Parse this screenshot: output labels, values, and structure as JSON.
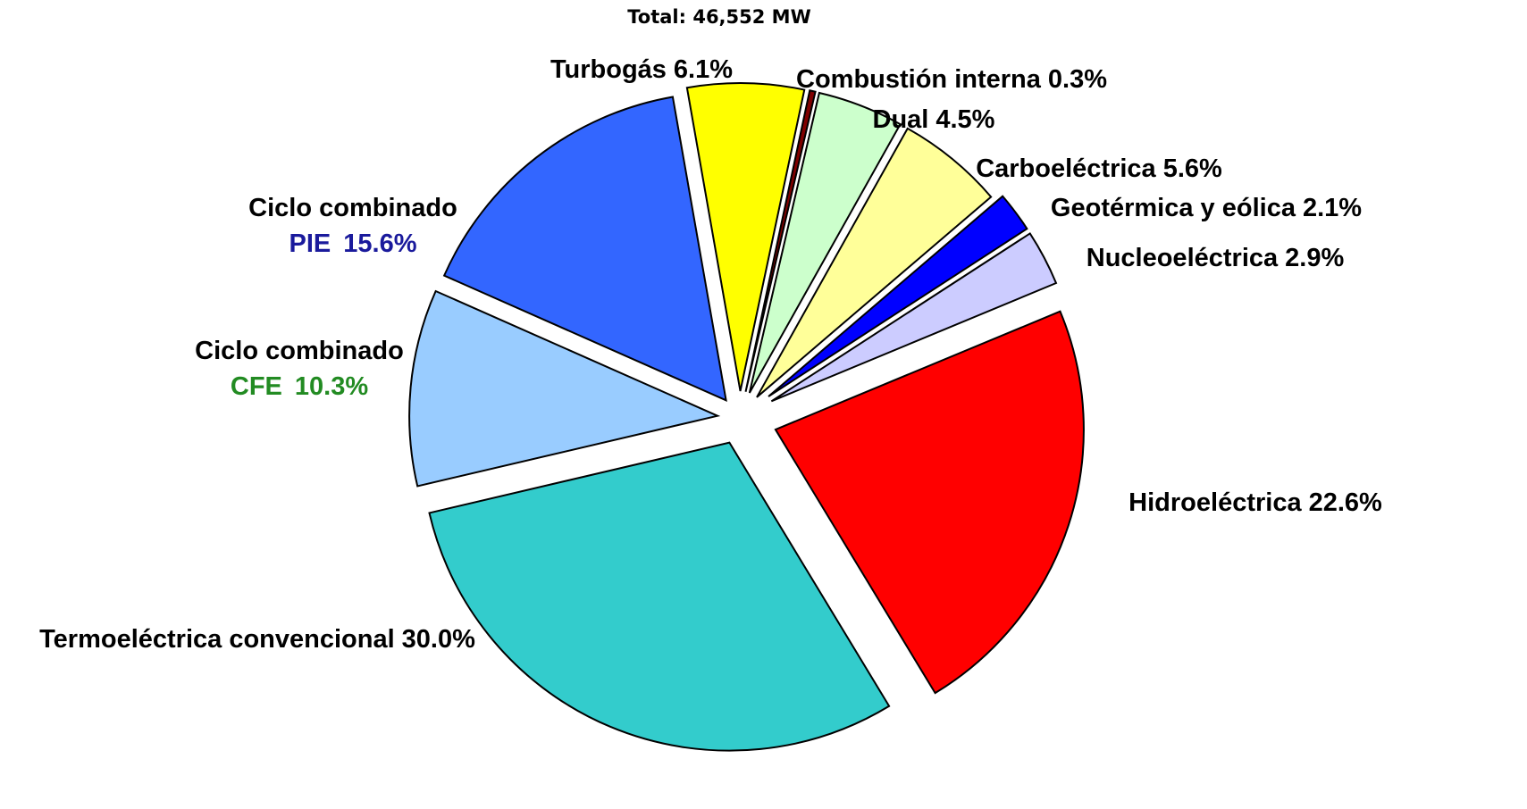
{
  "chart_data": {
    "type": "pie",
    "title": "Total: 46,552 MW",
    "categories": [
      "Combustión interna",
      "Dual",
      "Carboeléctrica",
      "Geotérmica y eólica",
      "Nucleoeléctrica",
      "Hidroeléctrica",
      "Termoeléctrica convencional",
      "Ciclo combinado\nCFE",
      "Ciclo combinado\nPIE",
      "Turbogás"
    ],
    "values": [
      0.3,
      4.5,
      5.6,
      2.1,
      2.9,
      22.6,
      30.0,
      10.3,
      15.6,
      6.1
    ],
    "value_labels": [
      "0.3%",
      "4.5%",
      "5.6%",
      "2.1%",
      "2.9%",
      "22.6%",
      "30.0%",
      "10.3%",
      "15.6%",
      "6.1%"
    ],
    "colors": [
      "#800000",
      "#ccffcc",
      "#ffff99",
      "#0000ff",
      "#ccccff",
      "#ff0000",
      "#33cccc",
      "#99ccff",
      "#3366ff",
      "#ffff00"
    ],
    "label_colors": [
      "#000000",
      "#000000",
      "#000000",
      "#000000",
      "#000000",
      "#000000",
      "#000000",
      "#228b22",
      "#1a1a9c",
      "#000000"
    ]
  }
}
